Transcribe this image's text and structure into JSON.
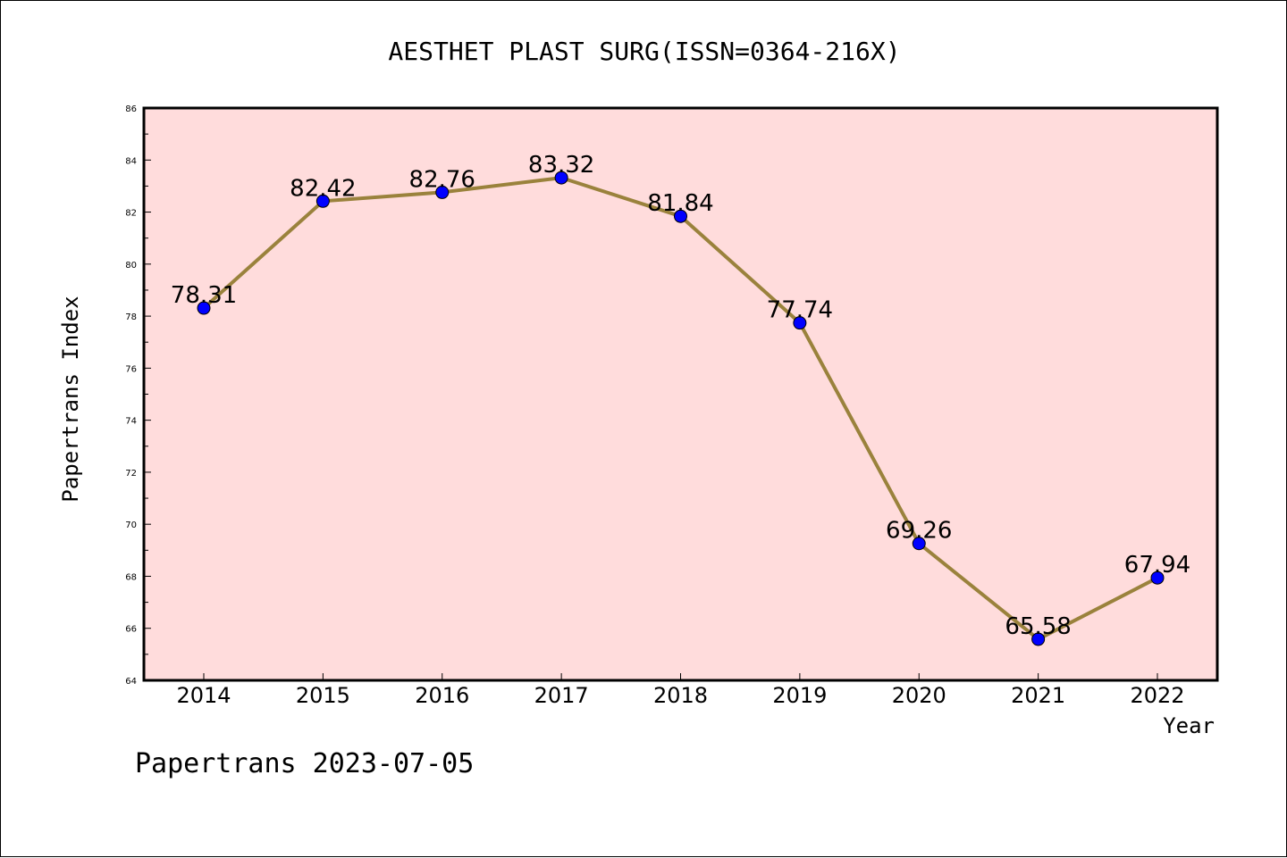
{
  "chart_data": {
    "type": "line",
    "title": "AESTHET PLAST SURG(ISSN=0364-216X)",
    "xlabel": "Year",
    "ylabel": "Papertrans Index",
    "footer": "Papertrans 2023-07-05",
    "categories": [
      "2014",
      "2015",
      "2016",
      "2017",
      "2018",
      "2019",
      "2020",
      "2021",
      "2022"
    ],
    "series": [
      {
        "values": [
          78.31,
          82.42,
          82.76,
          83.32,
          81.84,
          77.74,
          69.26,
          65.58,
          67.94
        ],
        "labels": [
          "78.31",
          "82.42",
          "82.76",
          "83.32",
          "81.84",
          "77.74",
          "69.26",
          "65.58",
          "67.94"
        ]
      }
    ],
    "ylim": [
      64,
      86
    ],
    "yticks": [
      "64",
      "66",
      "68",
      "70",
      "72",
      "74",
      "76",
      "78",
      "80",
      "82",
      "84",
      "86"
    ],
    "grid": false,
    "colors": {
      "plot_background": "#ffdcdc",
      "line": "#9a823c",
      "marker": "#0000ff",
      "axis": "#000000"
    }
  }
}
